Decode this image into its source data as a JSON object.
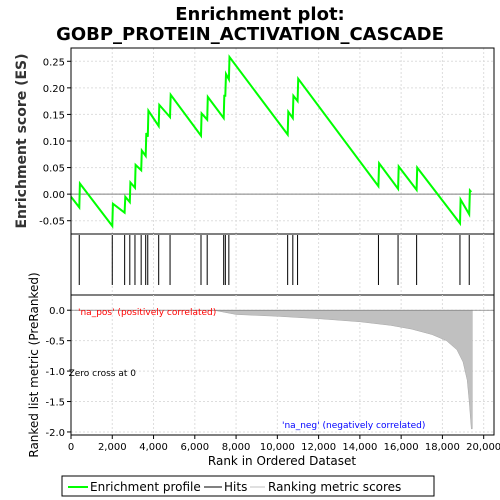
{
  "chart_data": {
    "title_line1": "Enrichment plot:",
    "title_line2": "GOBP_PROTEIN_ACTIVATION_CASCADE",
    "xlabel": "Rank in Ordered Dataset",
    "top_panel": {
      "type": "line",
      "ylabel": "Enrichment score (ES)",
      "xlim": [
        0,
        20500
      ],
      "ylim": [
        -0.075,
        0.275
      ],
      "yticks": [
        -0.05,
        0.0,
        0.05,
        0.1,
        0.15,
        0.2,
        0.25
      ],
      "ytick_labels": [
        "-0.05",
        "0.00",
        "0.05",
        "0.10",
        "0.15",
        "0.20",
        "0.25"
      ],
      "grid": true,
      "color": "#00ff00",
      "es_x": [
        0,
        400,
        430,
        2000,
        2030,
        2600,
        2630,
        2850,
        2880,
        3100,
        3130,
        3400,
        3430,
        3620,
        3650,
        3720,
        3750,
        4250,
        4280,
        4800,
        4830,
        6300,
        6330,
        6600,
        6630,
        7400,
        7430,
        7480,
        7510,
        7650,
        7680,
        10500,
        10530,
        10750,
        10780,
        10980,
        11010,
        14900,
        14930,
        15850,
        15880,
        16750,
        16780,
        18850,
        18880,
        19300,
        19330,
        19400
      ],
      "es_y": [
        -0.005,
        -0.025,
        0.02,
        -0.06,
        -0.018,
        -0.035,
        -0.005,
        -0.015,
        0.022,
        0.012,
        0.055,
        0.045,
        0.082,
        0.072,
        0.115,
        0.108,
        0.157,
        0.128,
        0.168,
        0.145,
        0.187,
        0.11,
        0.152,
        0.14,
        0.183,
        0.143,
        0.185,
        0.185,
        0.226,
        0.216,
        0.258,
        0.112,
        0.155,
        0.143,
        0.185,
        0.175,
        0.217,
        0.015,
        0.058,
        0.01,
        0.052,
        0.008,
        0.05,
        -0.055,
        -0.01,
        -0.038,
        0.007,
        0.004
      ]
    },
    "hits": [
      400,
      2000,
      2600,
      2850,
      3100,
      3400,
      3620,
      3720,
      4250,
      4800,
      6300,
      6600,
      7400,
      7480,
      7650,
      10500,
      10750,
      10980,
      14900,
      15850,
      16750,
      18850,
      19300
    ],
    "bottom_panel": {
      "type": "area",
      "ylabel": "Ranked list metric (PreRanked)",
      "ylim": [
        -2.05,
        0.25
      ],
      "yticks": [
        0.0,
        -0.5,
        -1.0,
        -1.5,
        -2.0
      ],
      "ytick_labels": [
        "0.0",
        "-0.5",
        "-1.0",
        "-1.5",
        "-2.0"
      ],
      "metric_x": [
        0,
        6900,
        8000,
        10000,
        12000,
        14000,
        15500,
        16500,
        17500,
        18200,
        18700,
        19000,
        19200,
        19300,
        19400,
        19450
      ],
      "metric_y": [
        0.0,
        0.0,
        -0.07,
        -0.1,
        -0.14,
        -0.19,
        -0.25,
        -0.31,
        -0.4,
        -0.5,
        -0.65,
        -0.85,
        -1.15,
        -1.5,
        -1.95,
        -1.95
      ],
      "zero_cross_label": "Zero cross at 0",
      "pos_label": "'na_pos' (positively correlated)",
      "neg_label": "'na_neg' (negatively correlated)",
      "pos_color": "#ff0000",
      "neg_color": "#0000ff"
    },
    "heat_segments": [
      {
        "from": 0,
        "to": 6900,
        "color": "#c8c8f4"
      },
      {
        "from": 6900,
        "to": 10100,
        "color": "#b4b4f4"
      },
      {
        "from": 10100,
        "to": 12400,
        "color": "#8a8af0"
      },
      {
        "from": 12400,
        "to": 18200,
        "color": "#6060ec"
      },
      {
        "from": 18200,
        "to": 19450,
        "color": "#2a10cc"
      }
    ],
    "xticks": [
      0,
      2000,
      4000,
      6000,
      8000,
      10000,
      12000,
      14000,
      16000,
      18000,
      20000
    ],
    "xtick_labels": [
      "0",
      "2,000",
      "4,000",
      "6,000",
      "8,000",
      "10,000",
      "12,000",
      "14,000",
      "16,000",
      "18,000",
      "20,000"
    ],
    "legend": [
      {
        "label": "Enrichment profile",
        "color": "#00ff00"
      },
      {
        "label": "Hits",
        "color": "#000000"
      },
      {
        "label": "Ranking metric scores",
        "color": "#c0c0c0"
      }
    ]
  }
}
